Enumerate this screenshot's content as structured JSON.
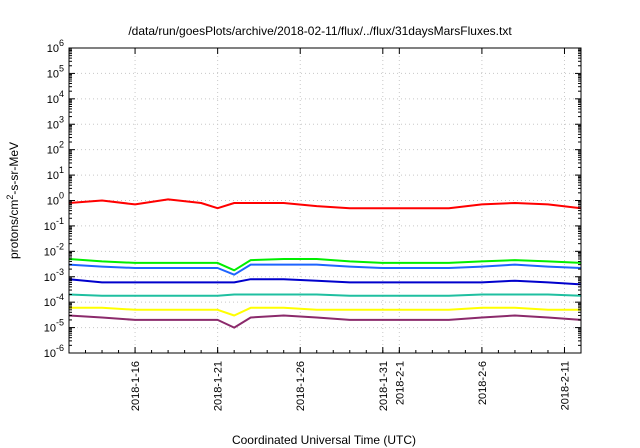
{
  "chart_data": {
    "type": "line",
    "title": "/data/run/goesPlots/archive/2018-02-11/flux/../flux/31daysMarsFluxes.txt",
    "xlabel": "Coordinated Universal Time (UTC)",
    "ylabel": {
      "prefix": "protons/cm",
      "sup": "2",
      "suffix": "-s-sr-MeV"
    },
    "yscale": "log",
    "ylim": [
      1e-06,
      1000000.0
    ],
    "xlim": [
      "2018-01-12",
      "2018-02-12"
    ],
    "grid": true,
    "legend": "none",
    "y_ticks": [
      {
        "base": "10",
        "exp": "-6"
      },
      {
        "base": "10",
        "exp": "-5"
      },
      {
        "base": "10",
        "exp": "-4"
      },
      {
        "base": "10",
        "exp": "-3"
      },
      {
        "base": "10",
        "exp": "-2"
      },
      {
        "base": "10",
        "exp": "-1"
      },
      {
        "base": "10",
        "exp": "0"
      },
      {
        "base": "10",
        "exp": "1"
      },
      {
        "base": "10",
        "exp": "2"
      },
      {
        "base": "10",
        "exp": "3"
      },
      {
        "base": "10",
        "exp": "4"
      },
      {
        "base": "10",
        "exp": "5"
      },
      {
        "base": "10",
        "exp": "6"
      }
    ],
    "x_tick_labels": [
      "2018-1-16",
      "2018-1-21",
      "2018-1-26",
      "2018-1-31",
      "2018-2-1",
      "2018-2-6",
      "2018-2-11"
    ],
    "x_tick_dates": [
      "2018-01-16",
      "2018-01-21",
      "2018-01-26",
      "2018-01-31",
      "2018-02-01",
      "2018-02-06",
      "2018-02-11"
    ],
    "series": [
      {
        "color": "#ff0000",
        "x": [
          "2018-01-12",
          "2018-01-14",
          "2018-01-16",
          "2018-01-18",
          "2018-01-20",
          "2018-01-21",
          "2018-01-22",
          "2018-01-23",
          "2018-01-25",
          "2018-01-27",
          "2018-01-29",
          "2018-01-31",
          "2018-02-02",
          "2018-02-04",
          "2018-02-06",
          "2018-02-08",
          "2018-02-10",
          "2018-02-12"
        ],
        "y": [
          0.8,
          1.0,
          0.7,
          1.1,
          0.8,
          0.5,
          0.8,
          0.8,
          0.8,
          0.6,
          0.5,
          0.5,
          0.5,
          0.5,
          0.7,
          0.8,
          0.7,
          0.5
        ]
      },
      {
        "color": "#00ee00",
        "x": [
          "2018-01-12",
          "2018-01-14",
          "2018-01-16",
          "2018-01-18",
          "2018-01-20",
          "2018-01-21",
          "2018-01-22",
          "2018-01-23",
          "2018-01-25",
          "2018-01-27",
          "2018-01-29",
          "2018-01-31",
          "2018-02-02",
          "2018-02-04",
          "2018-02-06",
          "2018-02-08",
          "2018-02-10",
          "2018-02-12"
        ],
        "y": [
          0.005,
          0.004,
          0.0035,
          0.0035,
          0.0035,
          0.0035,
          0.0018,
          0.0045,
          0.005,
          0.005,
          0.004,
          0.0035,
          0.0035,
          0.0035,
          0.004,
          0.0045,
          0.004,
          0.0035
        ]
      },
      {
        "color": "#1e64ff",
        "x": [
          "2018-01-12",
          "2018-01-14",
          "2018-01-16",
          "2018-01-18",
          "2018-01-20",
          "2018-01-21",
          "2018-01-22",
          "2018-01-23",
          "2018-01-25",
          "2018-01-27",
          "2018-01-29",
          "2018-01-31",
          "2018-02-02",
          "2018-02-04",
          "2018-02-06",
          "2018-02-08",
          "2018-02-10",
          "2018-02-12"
        ],
        "y": [
          0.003,
          0.0025,
          0.0022,
          0.0022,
          0.0022,
          0.0022,
          0.0012,
          0.003,
          0.003,
          0.003,
          0.0025,
          0.0022,
          0.0022,
          0.0022,
          0.0025,
          0.003,
          0.0025,
          0.0022
        ]
      },
      {
        "color": "#0000cc",
        "x": [
          "2018-01-12",
          "2018-01-14",
          "2018-01-16",
          "2018-01-18",
          "2018-01-20",
          "2018-01-21",
          "2018-01-22",
          "2018-01-23",
          "2018-01-25",
          "2018-01-27",
          "2018-01-29",
          "2018-01-31",
          "2018-02-02",
          "2018-02-04",
          "2018-02-06",
          "2018-02-08",
          "2018-02-10",
          "2018-02-12"
        ],
        "y": [
          0.0008,
          0.0006,
          0.0006,
          0.0006,
          0.0006,
          0.0006,
          0.0006,
          0.0008,
          0.0008,
          0.0007,
          0.0006,
          0.0006,
          0.0006,
          0.0006,
          0.0006,
          0.0007,
          0.0006,
          0.0005
        ]
      },
      {
        "color": "#1fbfa0",
        "x": [
          "2018-01-12",
          "2018-01-14",
          "2018-01-16",
          "2018-01-18",
          "2018-01-20",
          "2018-01-21",
          "2018-01-22",
          "2018-01-23",
          "2018-01-25",
          "2018-01-27",
          "2018-01-29",
          "2018-01-31",
          "2018-02-02",
          "2018-02-04",
          "2018-02-06",
          "2018-02-08",
          "2018-02-10",
          "2018-02-12"
        ],
        "y": [
          0.0002,
          0.00018,
          0.00018,
          0.00018,
          0.00018,
          0.00018,
          0.0002,
          0.0002,
          0.0002,
          0.0002,
          0.00018,
          0.00018,
          0.00018,
          0.00018,
          0.0002,
          0.0002,
          0.0002,
          0.00018
        ]
      },
      {
        "color": "#ffff00",
        "x": [
          "2018-01-12",
          "2018-01-14",
          "2018-01-16",
          "2018-01-18",
          "2018-01-20",
          "2018-01-21",
          "2018-01-22",
          "2018-01-23",
          "2018-01-25",
          "2018-01-27",
          "2018-01-29",
          "2018-01-31",
          "2018-02-02",
          "2018-02-04",
          "2018-02-06",
          "2018-02-08",
          "2018-02-10",
          "2018-02-12"
        ],
        "y": [
          6e-05,
          6e-05,
          5e-05,
          5e-05,
          5e-05,
          5e-05,
          3e-05,
          6e-05,
          6e-05,
          5e-05,
          5e-05,
          5e-05,
          5e-05,
          5e-05,
          6e-05,
          6e-05,
          5e-05,
          5e-05
        ]
      },
      {
        "color": "#8b2a6b",
        "x": [
          "2018-01-12",
          "2018-01-14",
          "2018-01-16",
          "2018-01-18",
          "2018-01-20",
          "2018-01-21",
          "2018-01-22",
          "2018-01-23",
          "2018-01-25",
          "2018-01-27",
          "2018-01-29",
          "2018-01-31",
          "2018-02-02",
          "2018-02-04",
          "2018-02-06",
          "2018-02-08",
          "2018-02-10",
          "2018-02-12"
        ],
        "y": [
          3e-05,
          2.5e-05,
          2e-05,
          2e-05,
          2e-05,
          2e-05,
          1e-05,
          2.5e-05,
          3e-05,
          2.5e-05,
          2e-05,
          2e-05,
          2e-05,
          2e-05,
          2.5e-05,
          3e-05,
          2.5e-05,
          2e-05
        ]
      }
    ]
  }
}
